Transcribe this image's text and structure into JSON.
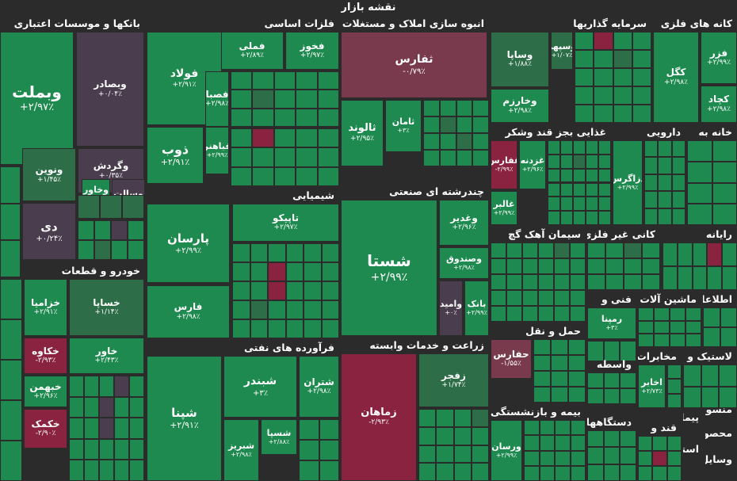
{
  "title": "نقشه بازار",
  "colors": {
    "up": "#1f8a50",
    "up_dark": "#2d6e48",
    "down": "#8a2340",
    "down_light": "#7a3a4e",
    "neutral": "#4a3d4d",
    "background": "#2b2b2b"
  },
  "chart_data": {
    "type": "treemap",
    "title": "نقشه بازار",
    "sectors": [
      {
        "name": "بانکها و موسسات اعتباری",
        "tiles": [
          {
            "name": "وبملت",
            "value": "+۲/۹۷٪",
            "color": "up"
          },
          {
            "name": "وبصادر",
            "value": "+۰/۰۴٪",
            "color": "neutral"
          },
          {
            "name": "ونوین",
            "value": "+۱/۴۵٪",
            "color": "up_dark"
          },
          {
            "name": "وگردش",
            "value": "+۰/۳۵٪",
            "color": "neutral"
          },
          {
            "name": "وخاور",
            "value": "+۲/۶۰٪",
            "color": "up"
          },
          {
            "name": "وسالت",
            "value": "+۰/۴۸٪",
            "color": "neutral"
          },
          {
            "name": "دی",
            "value": "+۰/۲۴٪",
            "color": "neutral"
          }
        ]
      },
      {
        "name": "فلزات اساسی",
        "tiles": [
          {
            "name": "فملی",
            "value": "+۲/۸۹٪",
            "color": "up"
          },
          {
            "name": "فخوز",
            "value": "+۲/۹۷٪",
            "color": "up"
          },
          {
            "name": "فولاد",
            "value": "+۲/۹۱٪",
            "color": "up"
          },
          {
            "name": "فصبا",
            "value": "+۲/۹۸٪",
            "color": "up"
          },
          {
            "name": "فباهنر",
            "value": "+۲/۹۹٪",
            "color": "up"
          },
          {
            "name": "ذوب",
            "value": "+۲/۹۱٪",
            "color": "up"
          }
        ]
      },
      {
        "name": "انبوه سازی املاک و مستغلات",
        "tiles": [
          {
            "name": "ثفارس",
            "value": "-۰/۷۹٪",
            "color": "down_light"
          },
          {
            "name": "ثامان",
            "value": "+۳٪",
            "color": "up"
          },
          {
            "name": "ثالوند",
            "value": "+۲/۹۵٪",
            "color": "up"
          }
        ]
      },
      {
        "name": "سرمایه گذاریها",
        "tiles": [
          {
            "name": "وساپا",
            "value": "+۱/۸۸٪",
            "color": "up_dark"
          },
          {
            "name": "وسپهر",
            "value": "+۱/۰۷٪",
            "color": "up_dark"
          },
          {
            "name": "وخارزم",
            "value": "+۲/۹۸٪",
            "color": "up"
          }
        ]
      },
      {
        "name": "کانه های فلزی",
        "tiles": [
          {
            "name": "کگل",
            "value": "+۲/۹۸٪",
            "color": "up"
          },
          {
            "name": "فزر",
            "value": "+۲/۹۹٪",
            "color": "up"
          },
          {
            "name": "کچاد",
            "value": "+۲/۹۸٪",
            "color": "up"
          }
        ]
      },
      {
        "name": "شیمیایی",
        "tiles": [
          {
            "name": "پارسان",
            "value": "+۲/۹۹٪",
            "color": "up"
          },
          {
            "name": "تاپیکو",
            "value": "+۲/۹۷٪",
            "color": "up"
          },
          {
            "name": "فارس",
            "value": "+۲/۹۸٪",
            "color": "up"
          }
        ]
      },
      {
        "name": "چندرشته ای صنعتی",
        "tiles": [
          {
            "name": "شستا",
            "value": "+۲/۹۹٪",
            "color": "up"
          },
          {
            "name": "وغدیر",
            "value": "+۲/۹۶٪",
            "color": "up"
          },
          {
            "name": "وصندوق",
            "value": "+۲/۹۸٪",
            "color": "up"
          },
          {
            "name": "وامید",
            "value": "+۰٪",
            "color": "neutral"
          },
          {
            "name": "بانک",
            "value": "+۲/۹۹٪",
            "color": "up"
          }
        ]
      },
      {
        "name": "غذایی بجز قند وشکر",
        "tiles": [
          {
            "name": "غفارس",
            "value": "-۲/۹۹٪",
            "color": "down"
          },
          {
            "name": "غزدنه",
            "value": "+۲/۹۶٪",
            "color": "up"
          },
          {
            "name": "غالبر",
            "value": "+۲/۹۹٪",
            "color": "up"
          }
        ]
      },
      {
        "name": "دارویی",
        "tiles": [
          {
            "name": "دزاگرس",
            "value": "+۲/۹۹٪",
            "color": "up"
          }
        ]
      },
      {
        "name": "خودرو و قطعات",
        "tiles": [
          {
            "name": "خزامیا",
            "value": "+۲/۹۱٪",
            "color": "up"
          },
          {
            "name": "خساپا",
            "value": "+۱/۱۴٪",
            "color": "up_dark"
          },
          {
            "name": "خکاوه",
            "value": "-۲/۹۳٪",
            "color": "down"
          },
          {
            "name": "خاور",
            "value": "+۲/۴۳٪",
            "color": "up"
          },
          {
            "name": "خبهمن",
            "value": "+۲/۹۶٪",
            "color": "up"
          },
          {
            "name": "خکمک",
            "value": "-۲/۹۰٪",
            "color": "down"
          }
        ]
      },
      {
        "name": "فرآورده های نفتی",
        "tiles": [
          {
            "name": "شپنا",
            "value": "+۲/۹۱٪",
            "color": "up"
          },
          {
            "name": "شبندر",
            "value": "+۳٪",
            "color": "up"
          },
          {
            "name": "شتران",
            "value": "+۲/۹۸٪",
            "color": "up"
          },
          {
            "name": "شسپا",
            "value": "+۲/۸۸٪",
            "color": "up"
          },
          {
            "name": "شبریز",
            "value": "+۲/۹۸٪",
            "color": "up"
          }
        ]
      },
      {
        "name": "زراعت و خدمات وابسته",
        "tiles": [
          {
            "name": "زماهان",
            "value": "-۲/۹۳٪",
            "color": "down"
          },
          {
            "name": "زفجر",
            "value": "+۱/۷۴٪",
            "color": "up_dark"
          }
        ]
      },
      {
        "name": "سیمان آهک گچ",
        "tiles": []
      },
      {
        "name": "کانی غیر فلزی",
        "tiles": []
      },
      {
        "name": "فنی و",
        "tiles": [
          {
            "name": "رمپنا",
            "value": "+۳٪",
            "color": "up"
          }
        ]
      },
      {
        "name": "حمل و نقل",
        "tiles": [
          {
            "name": "حفارس",
            "value": "-۱/۵۵٪",
            "color": "down_light"
          }
        ]
      },
      {
        "name": "واسطه",
        "tiles": []
      },
      {
        "name": "بیمه و بازنشستگی",
        "tiles": [
          {
            "name": "ورسان",
            "value": "+۲/۹۹٪",
            "color": "up"
          }
        ]
      },
      {
        "name": "دستگاههای",
        "tiles": []
      },
      {
        "name": "مخابرات",
        "tiles": [
          {
            "name": "اخابر",
            "value": "+۲/۷۳٪",
            "color": "up"
          }
        ]
      },
      {
        "name": "ماشین آلات و",
        "tiles": []
      },
      {
        "name": "رایانه",
        "tiles": []
      },
      {
        "name": "لاستیک و",
        "tiles": []
      },
      {
        "name": "قند و",
        "tiles": []
      },
      {
        "name": "اطلاعات",
        "tiles": []
      },
      {
        "name": "منسوجات",
        "tiles": []
      },
      {
        "name": "پیمانکاری",
        "tiles": []
      },
      {
        "name": "محصولات",
        "tiles": []
      },
      {
        "name": "استخراج",
        "tiles": []
      },
      {
        "name": "وسایل",
        "tiles": []
      },
      {
        "name": "خانه به",
        "tiles": []
      }
    ]
  }
}
